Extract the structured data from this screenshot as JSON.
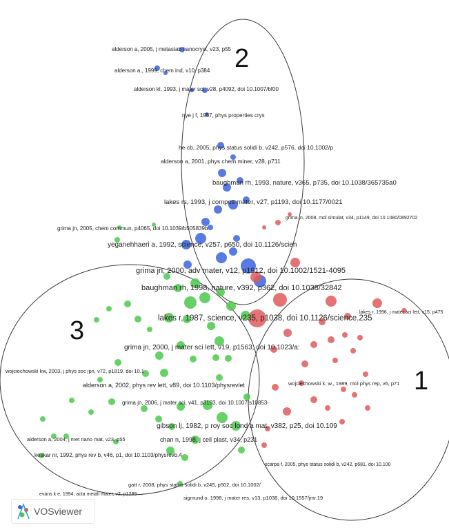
{
  "app": {
    "brand": "VOSviewer"
  },
  "colors": {
    "cluster_1": "#e05a5a",
    "cluster_2": "#3b63e0",
    "cluster_3": "#4cc94c",
    "outline": "#3a3a3a"
  },
  "clusters": [
    {
      "id": 1,
      "label": "1",
      "color": "cluster_1"
    },
    {
      "id": 2,
      "label": "2",
      "color": "cluster_2"
    },
    {
      "id": 3,
      "label": "3",
      "color": "cluster_3"
    }
  ],
  "items": [
    {
      "label": "alderson a, 2005, j metastab nanocryst, v23, p55",
      "cluster": 2
    },
    {
      "label": "alderson a., 1999, chem ind, v10, p384",
      "cluster": 2
    },
    {
      "label": "alderson kl, 1993, j mater sci, v28, p4092, doi 10.1007/bf00",
      "cluster": 2
    },
    {
      "label": "nye j f, 1957, phys properties crys",
      "cluster": 2
    },
    {
      "label": "he cb, 2005, phys status solidi b, v242, p576, doi 10.1002/p",
      "cluster": 2
    },
    {
      "label": "alderson a, 2001, phys chem miner, v28, p711",
      "cluster": 2
    },
    {
      "label": "baughman rh, 1993, nature, v365, p735, doi 10.1038/365735a0",
      "cluster": 2
    },
    {
      "label": "lakes rs, 1993, j compos mater, v27, p1193, doi 10.1177/0021",
      "cluster": 2
    },
    {
      "label": "grima jn, 2008, mol simulat, v34, p1149, doi 10.1080/0892702",
      "cluster": 1
    },
    {
      "label": "grima jn, 2005, chem commun, p4065, doi 10.1039/b505839b",
      "cluster": 3
    },
    {
      "label": "yeganehhaeri a, 1992, science, v257, p650, doi 10.1126/scien",
      "cluster": 2
    },
    {
      "label": "grima jn, 2000, adv mater, v12, p1912, doi 10.1002/1521-4095",
      "cluster": 2
    },
    {
      "label": "baughman rh, 1998, nature, v392, p362, doi 10.1038/32842",
      "cluster": 2
    },
    {
      "label": "lakes r, 1996, j mater sci lett, v15, p475",
      "cluster": 1
    },
    {
      "label": "lakes r, 1987, science, v235, p1038, doi 10.1126/science.235",
      "cluster": 1
    },
    {
      "label": "grima jn, 2000, j mater sci lett, v19, p1563, doi 10.1023/a:",
      "cluster": 3
    },
    {
      "label": "wojciechowski kw, 2003, j phys soc jpn, v72, p1819, doi 10.1",
      "cluster": 3
    },
    {
      "label": "alderson a, 2002, phys rev lett, v89, doi 10.1103/physrevlet",
      "cluster": 3
    },
    {
      "label": "wojciechowski k. w., 1989, mol phys rep, v6, p71",
      "cluster": 1
    },
    {
      "label": "grima jn, 2006, j mater sci, v41, p3193, doi 10.1007/s10853-",
      "cluster": 3
    },
    {
      "label": "gibson lj, 1982, p roy soc lond a mat, v382, p25, doi 10.109",
      "cluster": 3
    },
    {
      "label": "chan n, 1998, j cell plast, v34, p231",
      "cluster": 3
    },
    {
      "label": "alderson a, 2004, j met nano mat, v23, p55",
      "cluster": 3
    },
    {
      "label": "keskar nr, 1992, phys rev b, v46, p1, doi 10.1103/physrevb.4",
      "cluster": 3
    },
    {
      "label": "scarpa f, 2005, phys status solidi b, v242, p681, doi 10.100",
      "cluster": 1
    },
    {
      "label": "gatt r, 2008, phys status solidi b, v245, p502, doi 10.1002/",
      "cluster": 3
    },
    {
      "label": "evans k e, 1994, acta metall mater, v2, p1289",
      "cluster": 3
    },
    {
      "label": "sigmund o, 1998, j mater res, v13, p1038, doi 10.1557/jmr.19",
      "cluster": 1
    }
  ]
}
